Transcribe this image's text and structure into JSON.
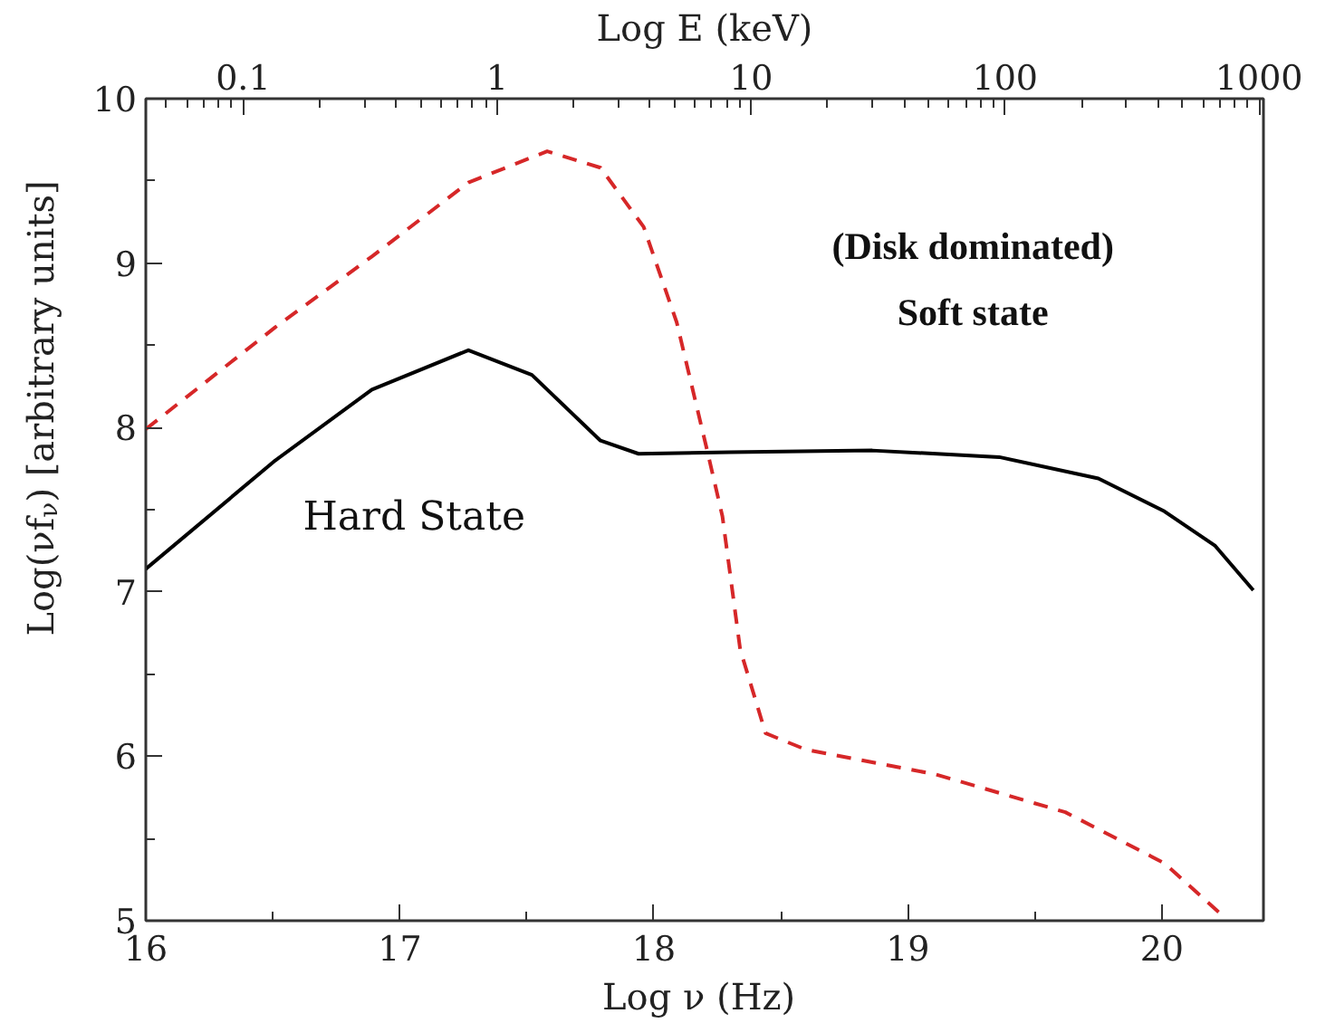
{
  "chart_data": {
    "type": "line",
    "xlabel": "Log ν  (Hz)",
    "ylabel": "Log(νf$_{ν}$) [arbitrary units]",
    "x2label": "Log E (keV)",
    "xlim": [
      16,
      20.4
    ],
    "xticks": [
      16,
      17,
      18,
      19,
      20
    ],
    "ylim": [
      5,
      10
    ],
    "yticks": [
      5,
      6,
      7,
      8,
      9,
      10
    ],
    "x2lim": [
      0.0414,
      1040
    ],
    "x2ticks": [
      0.1,
      1,
      10,
      100,
      1000
    ],
    "log": "x2",
    "grid": false,
    "series": [
      {
        "color": "#000000",
        "line_style": "solid",
        "x": [
          16.0,
          16.51,
          16.89,
          17.27,
          17.52,
          17.79,
          17.94,
          18.3,
          18.86,
          19.36,
          19.75,
          20.01,
          20.21,
          20.36
        ],
        "values": [
          7.14,
          7.8,
          8.23,
          8.47,
          8.32,
          7.92,
          7.84,
          7.85,
          7.86,
          7.82,
          7.69,
          7.49,
          7.28,
          7.01
        ]
      },
      {
        "color": "#d62728",
        "line_style": "dashed",
        "x": [
          16.0,
          16.51,
          16.89,
          17.27,
          17.58,
          17.79,
          17.96,
          18.09,
          18.21,
          18.27,
          18.34,
          18.44,
          18.6,
          19.11,
          19.62,
          20.01,
          20.24
        ],
        "values": [
          7.99,
          8.61,
          9.04,
          9.49,
          9.68,
          9.58,
          9.22,
          8.64,
          7.86,
          7.46,
          6.65,
          6.14,
          6.04,
          5.89,
          5.66,
          5.35,
          5.03
        ]
      }
    ],
    "annotations": [
      "Hard State",
      "(Disk dominated)",
      "Soft state"
    ]
  }
}
